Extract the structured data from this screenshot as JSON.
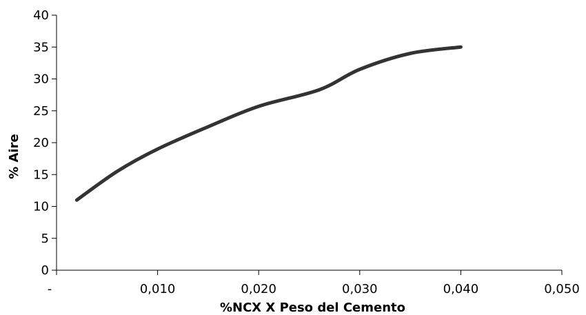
{
  "chart_data": {
    "type": "line",
    "title": "",
    "xlabel": "%NCX X Peso del Cemento",
    "ylabel": "% Aire",
    "xlim": [
      0,
      0.05
    ],
    "ylim": [
      0,
      40
    ],
    "grid": false,
    "legend": "none",
    "x_ticks": [
      {
        "value": 0,
        "label": "-"
      },
      {
        "value": 0.01,
        "label": "0,010"
      },
      {
        "value": 0.02,
        "label": "0,020"
      },
      {
        "value": 0.03,
        "label": "0,030"
      },
      {
        "value": 0.04,
        "label": "0,040"
      },
      {
        "value": 0.05,
        "label": "0,050"
      }
    ],
    "y_ticks": [
      {
        "value": 0,
        "label": "0"
      },
      {
        "value": 5,
        "label": "5"
      },
      {
        "value": 10,
        "label": "10"
      },
      {
        "value": 15,
        "label": "15"
      },
      {
        "value": 20,
        "label": "20"
      },
      {
        "value": 25,
        "label": "25"
      },
      {
        "value": 30,
        "label": "30"
      },
      {
        "value": 35,
        "label": "35"
      },
      {
        "value": 40,
        "label": "40"
      }
    ],
    "series": [
      {
        "color": "#333333",
        "x": [
          0.002,
          0.006,
          0.01,
          0.015,
          0.02,
          0.026,
          0.03,
          0.035,
          0.04
        ],
        "y": [
          11,
          15.5,
          19,
          22.5,
          25.7,
          28.3,
          31.5,
          34,
          35
        ]
      }
    ]
  }
}
